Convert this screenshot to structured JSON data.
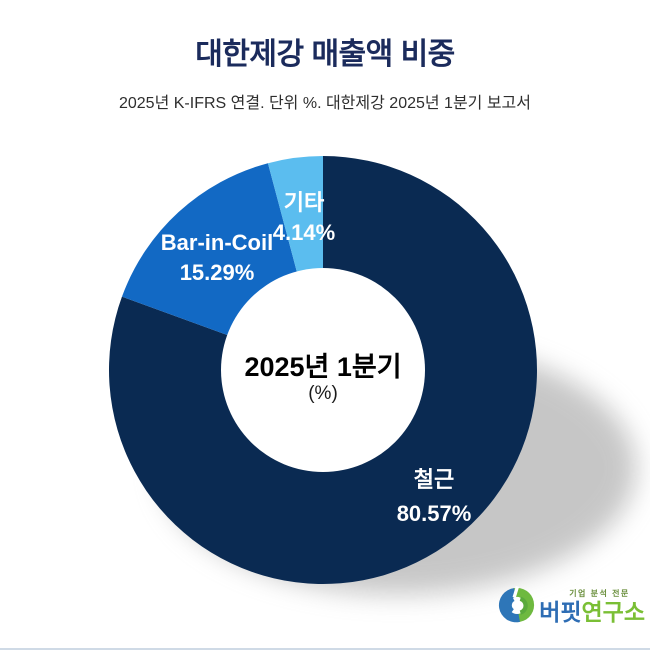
{
  "header": {
    "title": "대한제강 매출액 비중",
    "subtitle": "2025년 K-IFRS 연결. 단위 %. 대한제강 2025년 1분기 보고서"
  },
  "chart_data": {
    "type": "pie",
    "style": "donut",
    "title": "대한제강 매출액 비중",
    "unit": "%",
    "center_label": "2025년 1분기",
    "center_sublabel": "(%)",
    "start_angle": "12-o-clock",
    "direction": "clockwise",
    "donut_hole_ratio": 0.48,
    "segments": [
      {
        "label": "철근",
        "value": 80.57,
        "value_label": "80.57%",
        "color": "#0a2a52"
      },
      {
        "label": "Bar-in-Coil",
        "value": 15.29,
        "value_label": "15.29%",
        "color": "#1269c4"
      },
      {
        "label": "기타",
        "value": 4.14,
        "value_label": "4.14%",
        "color": "#5bbdef"
      }
    ]
  },
  "logo": {
    "tagline": "기업 분석 전문",
    "name_part1": "버핏",
    "name_part2": "연구소",
    "colors": {
      "blue": "#2e6db4",
      "green": "#7abf35"
    }
  },
  "colors": {
    "background": "#ffffff",
    "title": "#1b2b5c",
    "subtitle": "#2e2e2e",
    "shadow": "#8f8f8f"
  }
}
